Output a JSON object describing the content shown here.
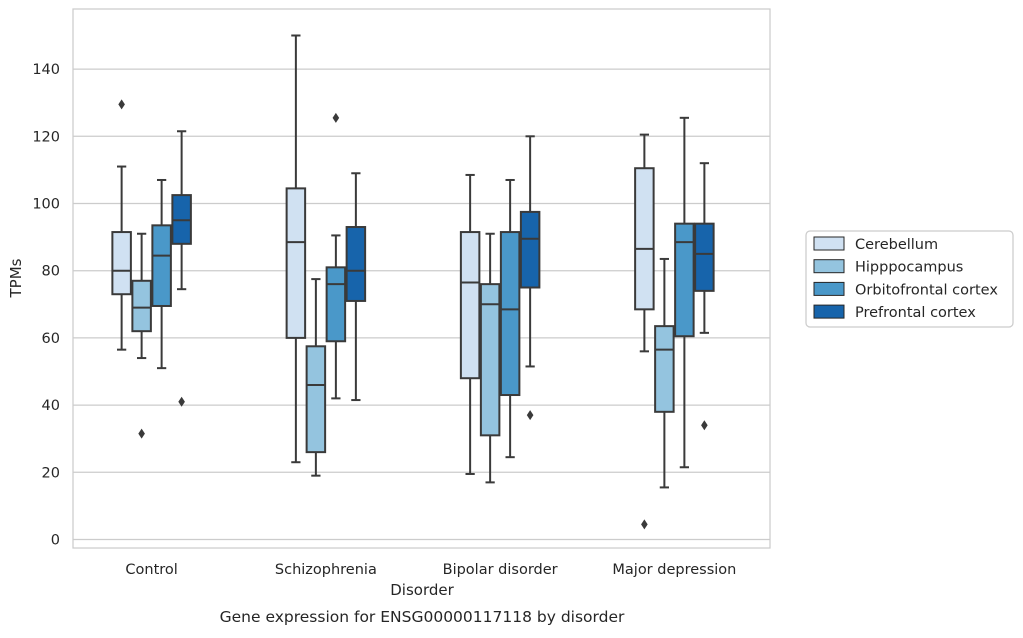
{
  "chart_data": {
    "type": "box",
    "title": "Gene expression for ENSG00000117118 by disorder",
    "xlabel": "Disorder",
    "ylabel": "TPMs",
    "categories": [
      "Control",
      "Schizophrenia",
      "Bipolar disorder",
      "Major depression"
    ],
    "ylim": [
      -2,
      157
    ],
    "yticks": [
      0,
      20,
      40,
      60,
      80,
      100,
      120,
      140
    ],
    "grid": true,
    "legend_position": "right",
    "series": [
      {
        "name": "Cerebellum",
        "color": "#d0e1f2",
        "boxes": [
          {
            "whisker_low": 56.5,
            "q1": 73,
            "median": 80,
            "q3": 91.5,
            "whisker_high": 111,
            "outliers": [
              129.5
            ]
          },
          {
            "whisker_low": 23,
            "q1": 60,
            "median": 88.5,
            "q3": 104.5,
            "whisker_high": 150,
            "outliers": []
          },
          {
            "whisker_low": 19.5,
            "q1": 48,
            "median": 76.5,
            "q3": 91.5,
            "whisker_high": 108.5,
            "outliers": []
          },
          {
            "whisker_low": 56,
            "q1": 68.5,
            "median": 86.5,
            "q3": 110.5,
            "whisker_high": 120.5,
            "outliers": [
              4.5
            ]
          }
        ]
      },
      {
        "name": "Hipppocampus",
        "color": "#94c4df",
        "boxes": [
          {
            "whisker_low": 54,
            "q1": 62,
            "median": 69,
            "q3": 77,
            "whisker_high": 91,
            "outliers": [
              31.5
            ]
          },
          {
            "whisker_low": 19,
            "q1": 26,
            "median": 46,
            "q3": 57.5,
            "whisker_high": 77.5,
            "outliers": []
          },
          {
            "whisker_low": 17,
            "q1": 31,
            "median": 70,
            "q3": 76,
            "whisker_high": 91,
            "outliers": []
          },
          {
            "whisker_low": 15.5,
            "q1": 38,
            "median": 56.5,
            "q3": 63.5,
            "whisker_high": 83.5,
            "outliers": []
          }
        ]
      },
      {
        "name": "Orbitofrontal cortex",
        "color": "#4a98c9",
        "boxes": [
          {
            "whisker_low": 51,
            "q1": 69.5,
            "median": 84.5,
            "q3": 93.5,
            "whisker_high": 107,
            "outliers": []
          },
          {
            "whisker_low": 42,
            "q1": 59,
            "median": 76,
            "q3": 81,
            "whisker_high": 90.5,
            "outliers": [
              125.5
            ]
          },
          {
            "whisker_low": 24.5,
            "q1": 43,
            "median": 68.5,
            "q3": 91.5,
            "whisker_high": 107,
            "outliers": []
          },
          {
            "whisker_low": 21.5,
            "q1": 60.5,
            "median": 88.5,
            "q3": 94,
            "whisker_high": 125.5,
            "outliers": []
          }
        ]
      },
      {
        "name": "Prefrontal cortex",
        "color": "#1764ab",
        "boxes": [
          {
            "whisker_low": 74.5,
            "q1": 88,
            "median": 95,
            "q3": 102.5,
            "whisker_high": 121.5,
            "outliers": [
              41
            ]
          },
          {
            "whisker_low": 41.5,
            "q1": 71,
            "median": 80,
            "q3": 93,
            "whisker_high": 109,
            "outliers": []
          },
          {
            "whisker_low": 51.5,
            "q1": 75,
            "median": 89.5,
            "q3": 97.5,
            "whisker_high": 120,
            "outliers": [
              37
            ]
          },
          {
            "whisker_low": 61.5,
            "q1": 74,
            "median": 85,
            "q3": 94,
            "whisker_high": 112,
            "outliers": [
              34
            ]
          }
        ]
      }
    ]
  }
}
